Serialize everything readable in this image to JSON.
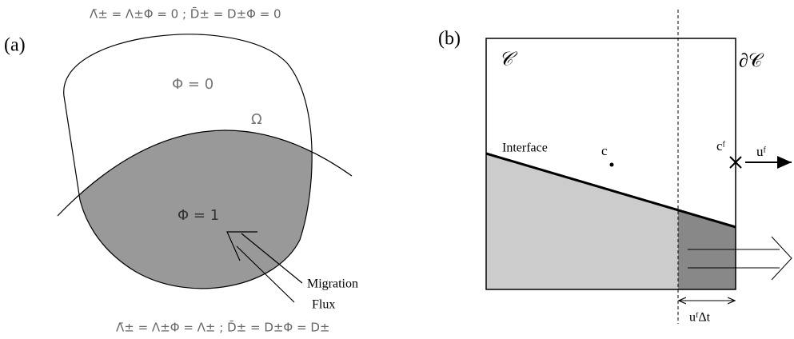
{
  "panel_a": {
    "label": "(a)",
    "top_equation": "Λ̄± = Λ±Φ = 0   ;   D̄± = D±Φ = 0",
    "region_empty": "Φ = 0",
    "domain": "Ω",
    "region_full": "Φ = 1",
    "arrow_label_1": "Migration",
    "arrow_label_2": "Flux",
    "bottom_equation": "Λ̄± = Λ±Φ = Λ±   ;   D̄± = D±Φ = D±"
  },
  "panel_b": {
    "label": "(b)",
    "cell": "𝒞",
    "boundary": "∂𝒞",
    "interface": "Interface",
    "center": "c",
    "face_center": "cᶠ",
    "face_velocity": "uᶠ",
    "swept_width": "uᶠΔt"
  }
}
